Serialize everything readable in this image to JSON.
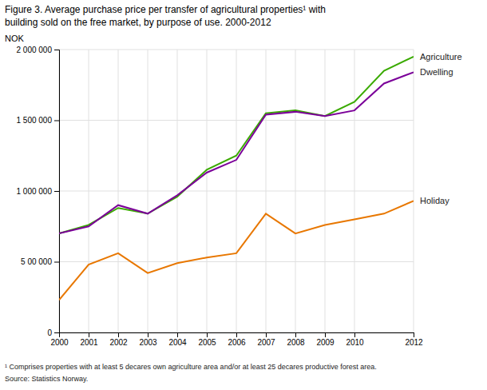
{
  "chart_data": {
    "type": "line",
    "title": "Figure 3. Average purchase price per transfer of agricultural properties¹ with",
    "subtitle": "building sold on the free market, by purpose of use. 2000-2012",
    "ylabel": "NOK",
    "annotations": [
      "¹ Comprises properties with at least 5 decares own agriculture area and/or at least 25 decares productive forest area.",
      "Source: Statistics Norway."
    ],
    "x": [
      2000,
      2001,
      2002,
      2003,
      2004,
      2005,
      2006,
      2007,
      2008,
      2009,
      2010,
      2011,
      2012
    ],
    "series": [
      {
        "name": "Agriculture",
        "color": "#3aaa00",
        "values": [
          700000,
          760000,
          880000,
          840000,
          960000,
          1150000,
          1250000,
          1550000,
          1570000,
          1530000,
          1630000,
          1850000,
          1950000
        ]
      },
      {
        "name": "Dwelling",
        "color": "#7b0099",
        "values": [
          700000,
          750000,
          900000,
          840000,
          970000,
          1130000,
          1220000,
          1540000,
          1560000,
          1530000,
          1570000,
          1760000,
          1840000
        ]
      },
      {
        "name": "Holiday",
        "color": "#e87700",
        "values": [
          230000,
          480000,
          560000,
          420000,
          490000,
          530000,
          560000,
          840000,
          700000,
          760000,
          800000,
          840000,
          930000
        ]
      }
    ],
    "xlim": [
      2000,
      2012
    ],
    "xticks": [
      2000,
      2001,
      2002,
      2003,
      2004,
      2005,
      2006,
      2007,
      2008,
      2009,
      2010,
      2012
    ],
    "ylim": [
      0,
      2000000
    ],
    "yticks": [
      0,
      {
        "value": 500000,
        "label": "5 00 000"
      },
      {
        "value": 1000000,
        "label": "1 000 000"
      },
      {
        "value": 1500000,
        "label": "1 500 000"
      },
      {
        "value": 2000000,
        "label": "2 000 000"
      }
    ],
    "grid": true
  }
}
